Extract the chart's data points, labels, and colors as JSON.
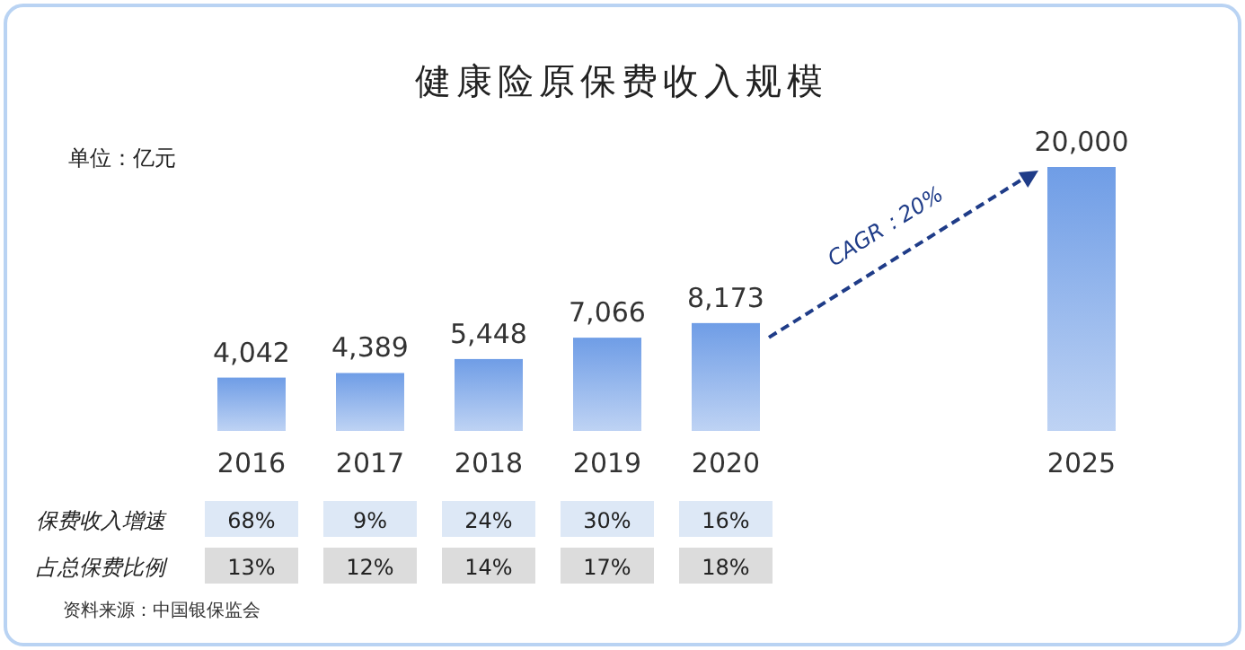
{
  "chart_data": {
    "type": "bar",
    "title": "健康险原保费收入规模",
    "ylabel": "单位：亿元",
    "categories": [
      "2016",
      "2017",
      "2018",
      "2019",
      "2020",
      null,
      null,
      "2025"
    ],
    "values": [
      4042,
      4389,
      5448,
      7066,
      8173,
      null,
      null,
      20000
    ],
    "value_labels": [
      "4,042",
      "4,389",
      "5,448",
      "7,066",
      "8,173",
      null,
      null,
      "20,000"
    ],
    "color": "#6f9de6",
    "annotations": [
      "CAGR：20%",
      "保费收入增速",
      "68%",
      "9%",
      "24%",
      "30%",
      "16%",
      "占总保费比例",
      "13%",
      "12%",
      "14%",
      "17%",
      "18%",
      "资料来源：中国银保监会"
    ]
  }
}
